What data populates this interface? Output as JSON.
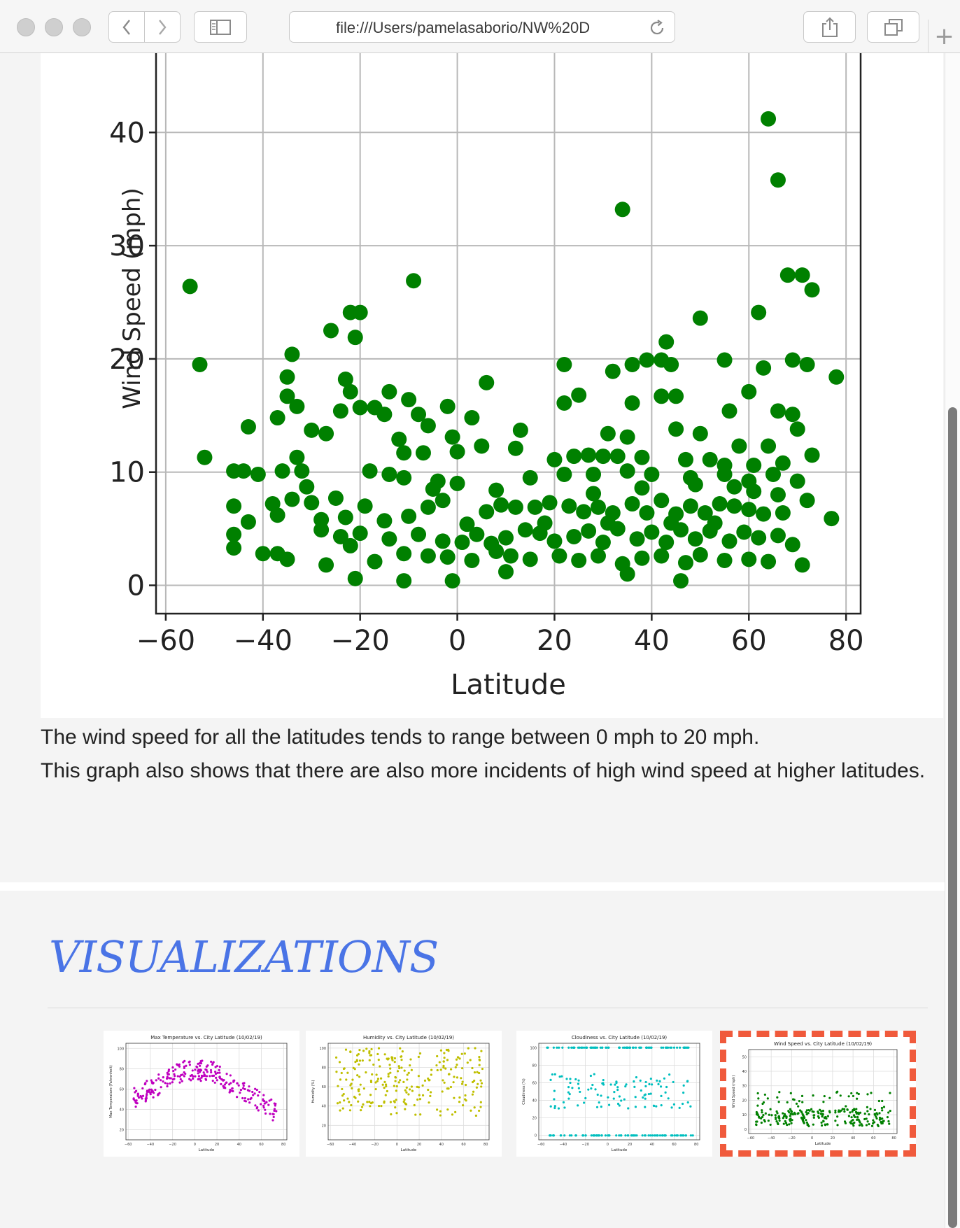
{
  "browser": {
    "url": "file:///Users/pamelasaborio/NW%20D",
    "buttons": {
      "back": "back",
      "forward": "forward",
      "sidebar": "sidebar",
      "reload": "reload",
      "share": "share",
      "tabs": "tabs",
      "new_tab": "+"
    },
    "icons": {
      "back": "chevron-left-icon",
      "forward": "chevron-right-icon",
      "sidebar": "sidebar-icon",
      "reload": "reload-icon",
      "share": "share-icon",
      "tabs": "tabs-icon"
    }
  },
  "main_chart": {
    "chart_data": {
      "type": "scatter",
      "xlabel": "Latitude",
      "ylabel": "Wind Speed (mph)",
      "xlim": [
        -62,
        83
      ],
      "ylim": [
        -2.5,
        47
      ],
      "xticks": [
        -60,
        -40,
        -20,
        0,
        20,
        40,
        60,
        80
      ],
      "yticks": [
        0,
        10,
        20,
        30,
        40
      ],
      "xtick_labels": [
        "−60",
        "−40",
        "−20",
        "0",
        "20",
        "40",
        "60",
        "80"
      ],
      "ytick_labels": [
        "0",
        "10",
        "20",
        "30",
        "40"
      ],
      "grid": true,
      "color": "#008000",
      "points": [
        [
          64,
          41.2
        ],
        [
          66,
          35.8
        ],
        [
          34,
          33.2
        ],
        [
          -55,
          26.4
        ],
        [
          -9,
          26.9
        ],
        [
          68,
          27.4
        ],
        [
          71,
          27.4
        ],
        [
          73,
          26.1
        ],
        [
          -22,
          24.1
        ],
        [
          -20,
          24.1
        ],
        [
          -26,
          22.5
        ],
        [
          -21,
          21.9
        ],
        [
          43,
          21.5
        ],
        [
          50,
          23.6
        ],
        [
          62,
          24.1
        ],
        [
          -53,
          19.5
        ],
        [
          -34,
          20.4
        ],
        [
          -23,
          18.2
        ],
        [
          6,
          17.9
        ],
        [
          22,
          19.5
        ],
        [
          32,
          18.9
        ],
        [
          36,
          19.5
        ],
        [
          39,
          19.9
        ],
        [
          42,
          19.9
        ],
        [
          44,
          19.5
        ],
        [
          55,
          19.9
        ],
        [
          63,
          19.2
        ],
        [
          69,
          19.9
        ],
        [
          72,
          19.5
        ],
        [
          78,
          18.4
        ],
        [
          -35,
          18.4
        ],
        [
          -14,
          17.1
        ],
        [
          -35,
          16.7
        ],
        [
          -22,
          17.1
        ],
        [
          -10,
          16.4
        ],
        [
          -33,
          15.8
        ],
        [
          -24,
          15.4
        ],
        [
          -20,
          15.7
        ],
        [
          -17,
          15.7
        ],
        [
          -15,
          15.1
        ],
        [
          -8,
          15.1
        ],
        [
          -2,
          15.8
        ],
        [
          3,
          14.8
        ],
        [
          22,
          16.1
        ],
        [
          25,
          16.8
        ],
        [
          36,
          16.1
        ],
        [
          42,
          16.7
        ],
        [
          45,
          16.7
        ],
        [
          56,
          15.4
        ],
        [
          60,
          17.1
        ],
        [
          66,
          15.4
        ],
        [
          69,
          15.1
        ],
        [
          -37,
          14.8
        ],
        [
          -43,
          14.0
        ],
        [
          -30,
          13.7
        ],
        [
          -27,
          13.4
        ],
        [
          -12,
          12.9
        ],
        [
          -6,
          14.1
        ],
        [
          -1,
          13.1
        ],
        [
          13,
          13.7
        ],
        [
          31,
          13.4
        ],
        [
          35,
          13.1
        ],
        [
          45,
          13.8
        ],
        [
          50,
          13.4
        ],
        [
          58,
          12.3
        ],
        [
          64,
          12.3
        ],
        [
          70,
          13.8
        ],
        [
          -52,
          11.3
        ],
        [
          -33,
          11.3
        ],
        [
          -11,
          11.7
        ],
        [
          -7,
          11.7
        ],
        [
          0,
          11.8
        ],
        [
          5,
          12.3
        ],
        [
          12,
          12.1
        ],
        [
          20,
          11.1
        ],
        [
          24,
          11.4
        ],
        [
          27,
          11.5
        ],
        [
          30,
          11.4
        ],
        [
          33,
          11.4
        ],
        [
          38,
          11.3
        ],
        [
          47,
          11.1
        ],
        [
          52,
          11.1
        ],
        [
          55,
          10.6
        ],
        [
          61,
          10.6
        ],
        [
          67,
          10.8
        ],
        [
          73,
          11.5
        ],
        [
          -46,
          10.1
        ],
        [
          -44,
          10.1
        ],
        [
          -41,
          9.8
        ],
        [
          -36,
          10.1
        ],
        [
          -32,
          10.1
        ],
        [
          -18,
          10.1
        ],
        [
          -14,
          9.8
        ],
        [
          -11,
          9.5
        ],
        [
          -4,
          9.2
        ],
        [
          15,
          9.5
        ],
        [
          22,
          9.8
        ],
        [
          28,
          9.8
        ],
        [
          35,
          10.1
        ],
        [
          40,
          9.8
        ],
        [
          48,
          9.5
        ],
        [
          55,
          9.8
        ],
        [
          60,
          9.2
        ],
        [
          65,
          9.8
        ],
        [
          70,
          9.2
        ],
        [
          -46,
          7.0
        ],
        [
          -38,
          7.2
        ],
        [
          -34,
          7.6
        ],
        [
          -30,
          7.3
        ],
        [
          -28,
          5.8
        ],
        [
          -23,
          6.0
        ],
        [
          -19,
          7.0
        ],
        [
          -15,
          5.7
        ],
        [
          -10,
          6.1
        ],
        [
          -6,
          6.9
        ],
        [
          -3,
          7.5
        ],
        [
          2,
          5.4
        ],
        [
          6,
          6.5
        ],
        [
          9,
          7.1
        ],
        [
          12,
          6.9
        ],
        [
          16,
          6.9
        ],
        [
          19,
          7.3
        ],
        [
          23,
          7.0
        ],
        [
          26,
          6.5
        ],
        [
          29,
          6.9
        ],
        [
          32,
          6.4
        ],
        [
          36,
          7.2
        ],
        [
          39,
          6.4
        ],
        [
          42,
          7.5
        ],
        [
          45,
          6.3
        ],
        [
          48,
          7.0
        ],
        [
          51,
          6.4
        ],
        [
          54,
          7.2
        ],
        [
          57,
          7.0
        ],
        [
          60,
          6.7
        ],
        [
          63,
          6.3
        ],
        [
          67,
          6.4
        ],
        [
          72,
          7.5
        ],
        [
          77,
          5.9
        ],
        [
          -46,
          4.5
        ],
        [
          -43,
          5.6
        ],
        [
          -37,
          6.2
        ],
        [
          -28,
          4.9
        ],
        [
          -24,
          4.3
        ],
        [
          -20,
          4.6
        ],
        [
          -14,
          4.1
        ],
        [
          -8,
          4.5
        ],
        [
          -3,
          3.9
        ],
        [
          1,
          3.8
        ],
        [
          4,
          4.5
        ],
        [
          7,
          3.7
        ],
        [
          10,
          4.2
        ],
        [
          14,
          4.9
        ],
        [
          17,
          4.6
        ],
        [
          20,
          3.9
        ],
        [
          24,
          4.3
        ],
        [
          27,
          4.8
        ],
        [
          30,
          3.8
        ],
        [
          33,
          5.0
        ],
        [
          37,
          4.1
        ],
        [
          40,
          4.7
        ],
        [
          43,
          3.8
        ],
        [
          46,
          4.9
        ],
        [
          49,
          4.1
        ],
        [
          52,
          4.8
        ],
        [
          56,
          3.9
        ],
        [
          59,
          4.7
        ],
        [
          62,
          4.2
        ],
        [
          66,
          4.4
        ],
        [
          69,
          3.6
        ],
        [
          -46,
          3.3
        ],
        [
          -40,
          2.8
        ],
        [
          -37,
          2.8
        ],
        [
          -35,
          2.3
        ],
        [
          -27,
          1.8
        ],
        [
          -22,
          3.5
        ],
        [
          -17,
          2.1
        ],
        [
          -11,
          2.8
        ],
        [
          -6,
          2.6
        ],
        [
          -2,
          2.5
        ],
        [
          3,
          2.2
        ],
        [
          8,
          3.0
        ],
        [
          11,
          2.6
        ],
        [
          15,
          2.3
        ],
        [
          21,
          2.6
        ],
        [
          25,
          2.2
        ],
        [
          29,
          2.6
        ],
        [
          34,
          1.9
        ],
        [
          38,
          2.4
        ],
        [
          42,
          2.6
        ],
        [
          47,
          2.0
        ],
        [
          50,
          2.7
        ],
        [
          55,
          2.2
        ],
        [
          60,
          2.3
        ],
        [
          64,
          2.1
        ],
        [
          71,
          1.8
        ],
        [
          -21,
          0.6
        ],
        [
          -11,
          0.4
        ],
        [
          -1,
          0.4
        ],
        [
          10,
          1.2
        ],
        [
          35,
          1.0
        ],
        [
          46,
          0.4
        ],
        [
          -5,
          8.5
        ],
        [
          0,
          9.0
        ],
        [
          18,
          5.5
        ],
        [
          31,
          5.5
        ],
        [
          44,
          5.5
        ],
        [
          53,
          5.5
        ],
        [
          61,
          8.3
        ],
        [
          66,
          8.0
        ],
        [
          -31,
          8.7
        ],
        [
          -25,
          7.7
        ],
        [
          8,
          8.4
        ],
        [
          28,
          8.1
        ],
        [
          38,
          8.6
        ],
        [
          49,
          8.9
        ],
        [
          57,
          8.7
        ]
      ]
    },
    "description": [
      "The wind speed for all the latitudes tends to range between 0 mph to 20 mph.",
      "This graph also shows that there are also more incidents of high wind speed at higher latitudes."
    ]
  },
  "visualizations": {
    "heading": "VISUALIZATIONS",
    "thumbnails": [
      {
        "title": "Max Temperature vs. City Latitude (10/02/19)",
        "xlabel": "Latitude",
        "ylabel": "Max Temperature (Fahrenheit)",
        "color": "#bf00bf",
        "ylim": [
          10,
          105
        ],
        "yticks": [
          20,
          40,
          60,
          80,
          100
        ],
        "selected": false
      },
      {
        "title": "Humidity vs. City Latitude (10/02/19)",
        "xlabel": "Latitude",
        "ylabel": "Humidity (%)",
        "color": "#bfbf00",
        "ylim": [
          5,
          105
        ],
        "yticks": [
          20,
          40,
          60,
          80,
          100
        ],
        "selected": false
      },
      {
        "title": "Cloudiness vs. City Latitude (10/02/19)",
        "xlabel": "Latitude",
        "ylabel": "Cloudiness (%)",
        "color": "#00bfbf",
        "ylim": [
          -5,
          105
        ],
        "yticks": [
          0,
          20,
          40,
          60,
          80,
          100
        ],
        "selected": false
      },
      {
        "title": "Wind Speed vs. City Latitude (10/02/19)",
        "xlabel": "Latitude",
        "ylabel": "Wind Speed (mph)",
        "color": "#008000",
        "ylim": [
          -3,
          55
        ],
        "yticks": [
          0,
          10,
          20,
          30,
          40,
          50
        ],
        "selected": true
      }
    ],
    "thumb_xticks": [
      "−60",
      "−40",
      "−20",
      "0",
      "20",
      "40",
      "60",
      "80"
    ]
  }
}
